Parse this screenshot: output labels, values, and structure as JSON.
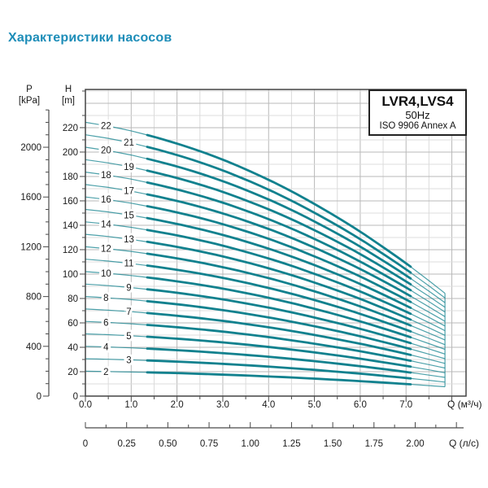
{
  "page": {
    "title": "Характеристики насосов",
    "title_color": "#1d8db8"
  },
  "legend_box": {
    "model": "LVR4,LVS4",
    "frequency": "50Hz",
    "standard": "ISO 9906 Annex A"
  },
  "chart_data": {
    "type": "line",
    "title": "LVR4,LVS4 50Hz ISO 9906 Annex A",
    "x_axis": {
      "label": "Q (м³/ч)",
      "major_tick_values": [
        0,
        1,
        2,
        3,
        4,
        5,
        6,
        7
      ],
      "major_tick_labels": [
        "0.0",
        "1.0",
        "2.0",
        "3.0",
        "4.0",
        "5.0",
        "6.0",
        "7.0"
      ],
      "minor_step": 0.5,
      "range": [
        0,
        8.31
      ],
      "grid": true
    },
    "x_axis_secondary": {
      "label": "Q (л/с)",
      "tick_values": [
        0,
        0.25,
        0.5,
        0.75,
        1.0,
        1.25,
        1.5,
        1.75,
        2.0
      ],
      "tick_labels": [
        "0",
        "0.25",
        "0.50",
        "0.75",
        "1.00",
        "1.25",
        "1.50",
        "1.75",
        "2.00"
      ],
      "minor_step": 0.125,
      "range": [
        0,
        2.31
      ],
      "m3h_per_ls": 3.6
    },
    "y_axis_h": {
      "title": "H",
      "unit": "[m]",
      "major_step": 20,
      "minor_step": 10,
      "max_label": 220,
      "range": [
        0,
        251.3
      ]
    },
    "y_axis_p": {
      "title": "P",
      "unit": "[kPa]",
      "major_step": 400,
      "minor_step": 100,
      "max_label": 2000,
      "range": [
        0,
        2464
      ],
      "kpa_per_m": 9.80665
    },
    "stages": [
      2,
      3,
      4,
      5,
      6,
      7,
      8,
      9,
      10,
      11,
      12,
      13,
      14,
      15,
      16,
      17,
      18,
      19,
      20,
      21,
      22
    ],
    "q_values": [
      0,
      0.5,
      1,
      1.5,
      2,
      2.5,
      3,
      3.5,
      4,
      4.5,
      5,
      5.5,
      6,
      6.5,
      7,
      7.5,
      7.85
    ],
    "head_per_stage_m": [
      10.2,
      10.06,
      9.88,
      9.66,
      9.41,
      9.13,
      8.81,
      8.45,
      8.06,
      7.63,
      7.16,
      6.66,
      6.13,
      5.55,
      4.95,
      4.3,
      3.83
    ],
    "q_max": 7.85,
    "bold_range": [
      1.35,
      7.1
    ],
    "label_q_even": 0.45,
    "label_q_odd": 0.95,
    "colors": {
      "curve": "#11818e",
      "grid_minor": "#dcdcdc",
      "grid_major": "#b9b9b9",
      "frame": "#444444",
      "axis": "#4a4a4a",
      "text": "#1a1a1a"
    }
  }
}
